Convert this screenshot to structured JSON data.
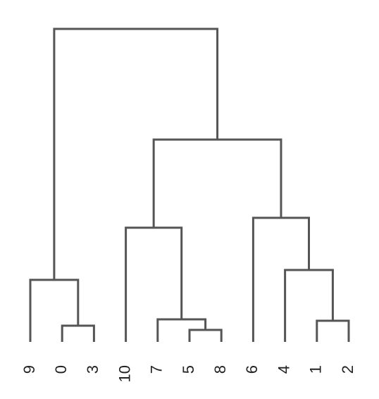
{
  "leaves": [
    "9",
    "0",
    "3",
    "10",
    "7",
    "5",
    "8",
    "6",
    "4",
    "1",
    "2"
  ]
}
